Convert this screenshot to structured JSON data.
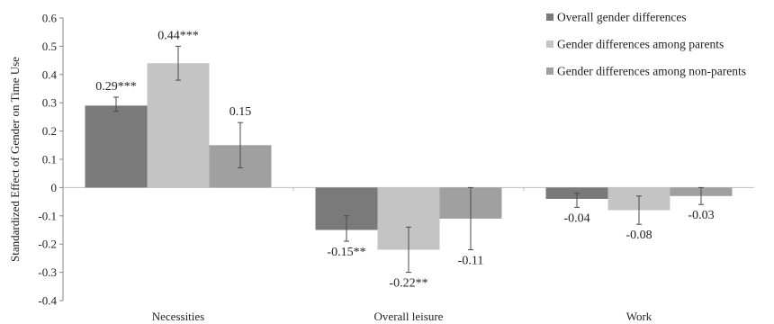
{
  "chart_data": {
    "type": "bar",
    "ylabel": "Standardized Effect of Gender on Time Use",
    "ylim": [
      -0.4,
      0.6
    ],
    "yticks": [
      "0.6",
      "0.5",
      "0.4",
      "0.3",
      "0.2",
      "0.1",
      "0",
      "-0.1",
      "-0.2",
      "-0.3",
      "-0.4"
    ],
    "ytick_values": [
      0.6,
      0.5,
      0.4,
      0.3,
      0.2,
      0.1,
      0,
      -0.1,
      -0.2,
      -0.3,
      -0.4
    ],
    "categories": [
      "Necessities",
      "Overall leisure",
      "Work"
    ],
    "grid": false,
    "legend_position": "top-right",
    "series": [
      {
        "name": "Overall gender differences",
        "color": "#7a7a7a",
        "values": [
          0.29,
          -0.15,
          -0.04
        ],
        "err_low": [
          0.27,
          -0.19,
          -0.07
        ],
        "err_high": [
          0.32,
          -0.1,
          -0.02
        ],
        "labels": [
          "0.29***",
          "-0.15**",
          "-0.04"
        ]
      },
      {
        "name": "Gender differences among parents",
        "color": "#c4c4c4",
        "values": [
          0.44,
          -0.22,
          -0.08
        ],
        "err_low": [
          0.38,
          -0.3,
          -0.13
        ],
        "err_high": [
          0.5,
          -0.14,
          -0.03
        ],
        "labels": [
          "0.44***",
          "-0.22**",
          "-0.08"
        ]
      },
      {
        "name": "Gender differences among non-parents",
        "color": "#a0a0a0",
        "values": [
          0.15,
          -0.11,
          -0.03
        ],
        "err_low": [
          0.07,
          -0.22,
          -0.06
        ],
        "err_high": [
          0.23,
          0.0,
          0.0
        ],
        "labels": [
          "0.15",
          "-0.11",
          "-0.03"
        ]
      }
    ]
  }
}
